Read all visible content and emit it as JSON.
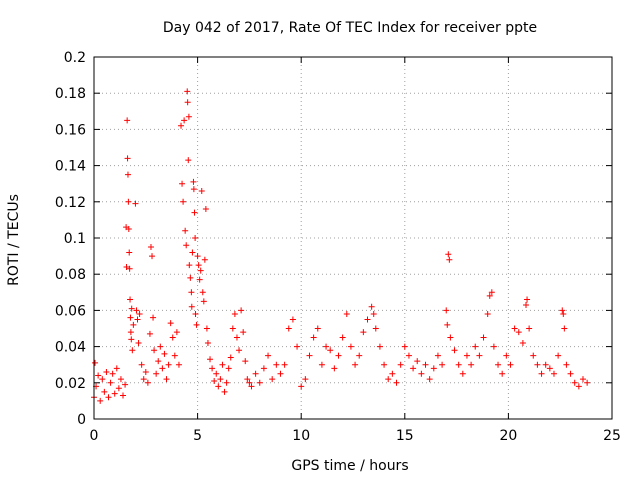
{
  "chart_data": {
    "type": "scatter",
    "title": "Day 042 of 2017, Rate Of TEC Index for receiver ppte",
    "xlabel": "GPS time / hours",
    "ylabel": "ROTI / TECUs",
    "xlim": [
      0,
      25
    ],
    "ylim": [
      0,
      0.2
    ],
    "xticks": [
      0,
      5,
      10,
      15,
      20,
      25
    ],
    "yticks": [
      0,
      0.02,
      0.04,
      0.06,
      0.08,
      0.1,
      0.12,
      0.14,
      0.16,
      0.18,
      0.2
    ],
    "grid": true,
    "marker": "+",
    "color": "#ff0000",
    "series": [
      {
        "points": [
          [
            0.0,
            0.012
          ],
          [
            0.05,
            0.031
          ],
          [
            0.1,
            0.018
          ],
          [
            0.2,
            0.024
          ],
          [
            0.3,
            0.01
          ],
          [
            0.4,
            0.022
          ],
          [
            0.5,
            0.015
          ],
          [
            0.6,
            0.026
          ],
          [
            0.7,
            0.012
          ],
          [
            0.8,
            0.02
          ],
          [
            0.9,
            0.025
          ],
          [
            1.0,
            0.014
          ],
          [
            1.1,
            0.028
          ],
          [
            1.2,
            0.017
          ],
          [
            1.3,
            0.022
          ],
          [
            1.4,
            0.013
          ],
          [
            1.5,
            0.019
          ],
          [
            1.55,
            0.106
          ],
          [
            1.57,
            0.084
          ],
          [
            1.6,
            0.165
          ],
          [
            1.62,
            0.144
          ],
          [
            1.64,
            0.135
          ],
          [
            1.66,
            0.12
          ],
          [
            1.68,
            0.105
          ],
          [
            1.7,
            0.092
          ],
          [
            1.72,
            0.083
          ],
          [
            1.74,
            0.066
          ],
          [
            1.76,
            0.056
          ],
          [
            1.78,
            0.048
          ],
          [
            1.8,
            0.044
          ],
          [
            1.82,
            0.061
          ],
          [
            1.85,
            0.038
          ],
          [
            1.9,
            0.052
          ],
          [
            2.0,
            0.119
          ],
          [
            2.05,
            0.06
          ],
          [
            2.1,
            0.055
          ],
          [
            2.15,
            0.042
          ],
          [
            2.2,
            0.058
          ],
          [
            2.3,
            0.03
          ],
          [
            2.4,
            0.022
          ],
          [
            2.5,
            0.026
          ],
          [
            2.6,
            0.02
          ],
          [
            2.7,
            0.047
          ],
          [
            2.75,
            0.095
          ],
          [
            2.8,
            0.09
          ],
          [
            2.85,
            0.056
          ],
          [
            2.9,
            0.038
          ],
          [
            3.0,
            0.025
          ],
          [
            3.1,
            0.032
          ],
          [
            3.2,
            0.04
          ],
          [
            3.3,
            0.028
          ],
          [
            3.4,
            0.036
          ],
          [
            3.5,
            0.022
          ],
          [
            3.6,
            0.03
          ],
          [
            3.7,
            0.053
          ],
          [
            3.8,
            0.045
          ],
          [
            3.9,
            0.035
          ],
          [
            4.0,
            0.048
          ],
          [
            4.1,
            0.03
          ],
          [
            4.2,
            0.162
          ],
          [
            4.25,
            0.13
          ],
          [
            4.3,
            0.12
          ],
          [
            4.35,
            0.165
          ],
          [
            4.4,
            0.104
          ],
          [
            4.45,
            0.096
          ],
          [
            4.5,
            0.181
          ],
          [
            4.52,
            0.175
          ],
          [
            4.55,
            0.143
          ],
          [
            4.58,
            0.167
          ],
          [
            4.6,
            0.085
          ],
          [
            4.65,
            0.078
          ],
          [
            4.7,
            0.07
          ],
          [
            4.72,
            0.062
          ],
          [
            4.75,
            0.092
          ],
          [
            4.8,
            0.131
          ],
          [
            4.82,
            0.127
          ],
          [
            4.85,
            0.114
          ],
          [
            4.88,
            0.1
          ],
          [
            4.9,
            0.058
          ],
          [
            4.95,
            0.052
          ],
          [
            5.0,
            0.09
          ],
          [
            5.05,
            0.085
          ],
          [
            5.1,
            0.077
          ],
          [
            5.15,
            0.082
          ],
          [
            5.2,
            0.126
          ],
          [
            5.25,
            0.07
          ],
          [
            5.3,
            0.065
          ],
          [
            5.35,
            0.088
          ],
          [
            5.4,
            0.116
          ],
          [
            5.45,
            0.05
          ],
          [
            5.5,
            0.042
          ],
          [
            5.6,
            0.033
          ],
          [
            5.7,
            0.028
          ],
          [
            5.8,
            0.021
          ],
          [
            5.9,
            0.025
          ],
          [
            6.0,
            0.018
          ],
          [
            6.1,
            0.022
          ],
          [
            6.2,
            0.03
          ],
          [
            6.3,
            0.015
          ],
          [
            6.4,
            0.02
          ],
          [
            6.5,
            0.028
          ],
          [
            6.6,
            0.034
          ],
          [
            6.7,
            0.05
          ],
          [
            6.8,
            0.058
          ],
          [
            6.9,
            0.045
          ],
          [
            7.0,
            0.038
          ],
          [
            7.1,
            0.06
          ],
          [
            7.2,
            0.048
          ],
          [
            7.3,
            0.032
          ],
          [
            7.4,
            0.022
          ],
          [
            7.5,
            0.02
          ],
          [
            7.6,
            0.018
          ],
          [
            7.8,
            0.025
          ],
          [
            8.0,
            0.02
          ],
          [
            8.2,
            0.028
          ],
          [
            8.4,
            0.035
          ],
          [
            8.6,
            0.022
          ],
          [
            8.8,
            0.03
          ],
          [
            9.0,
            0.025
          ],
          [
            9.2,
            0.03
          ],
          [
            9.4,
            0.05
          ],
          [
            9.6,
            0.055
          ],
          [
            9.8,
            0.04
          ],
          [
            10.0,
            0.018
          ],
          [
            10.2,
            0.022
          ],
          [
            10.4,
            0.035
          ],
          [
            10.6,
            0.045
          ],
          [
            10.8,
            0.05
          ],
          [
            11.0,
            0.03
          ],
          [
            11.2,
            0.04
          ],
          [
            11.4,
            0.038
          ],
          [
            11.6,
            0.028
          ],
          [
            11.8,
            0.035
          ],
          [
            12.0,
            0.045
          ],
          [
            12.2,
            0.058
          ],
          [
            12.4,
            0.04
          ],
          [
            12.6,
            0.03
          ],
          [
            12.8,
            0.035
          ],
          [
            13.0,
            0.048
          ],
          [
            13.2,
            0.055
          ],
          [
            13.4,
            0.062
          ],
          [
            13.5,
            0.058
          ],
          [
            13.6,
            0.05
          ],
          [
            13.8,
            0.04
          ],
          [
            14.0,
            0.03
          ],
          [
            14.2,
            0.022
          ],
          [
            14.4,
            0.025
          ],
          [
            14.6,
            0.02
          ],
          [
            14.8,
            0.03
          ],
          [
            15.0,
            0.04
          ],
          [
            15.2,
            0.035
          ],
          [
            15.4,
            0.028
          ],
          [
            15.6,
            0.032
          ],
          [
            15.8,
            0.025
          ],
          [
            16.0,
            0.03
          ],
          [
            16.2,
            0.022
          ],
          [
            16.4,
            0.028
          ],
          [
            16.6,
            0.035
          ],
          [
            16.8,
            0.03
          ],
          [
            17.0,
            0.06
          ],
          [
            17.05,
            0.052
          ],
          [
            17.1,
            0.091
          ],
          [
            17.15,
            0.088
          ],
          [
            17.2,
            0.045
          ],
          [
            17.4,
            0.038
          ],
          [
            17.6,
            0.03
          ],
          [
            17.8,
            0.025
          ],
          [
            18.0,
            0.035
          ],
          [
            18.2,
            0.03
          ],
          [
            18.4,
            0.04
          ],
          [
            18.6,
            0.035
          ],
          [
            18.8,
            0.045
          ],
          [
            19.0,
            0.058
          ],
          [
            19.1,
            0.068
          ],
          [
            19.2,
            0.07
          ],
          [
            19.3,
            0.04
          ],
          [
            19.5,
            0.03
          ],
          [
            19.7,
            0.025
          ],
          [
            19.9,
            0.035
          ],
          [
            20.1,
            0.03
          ],
          [
            20.3,
            0.05
          ],
          [
            20.5,
            0.048
          ],
          [
            20.7,
            0.042
          ],
          [
            20.85,
            0.063
          ],
          [
            20.9,
            0.066
          ],
          [
            21.0,
            0.05
          ],
          [
            21.2,
            0.035
          ],
          [
            21.4,
            0.03
          ],
          [
            21.6,
            0.025
          ],
          [
            21.8,
            0.03
          ],
          [
            22.0,
            0.028
          ],
          [
            22.2,
            0.025
          ],
          [
            22.4,
            0.035
          ],
          [
            22.6,
            0.06
          ],
          [
            22.65,
            0.058
          ],
          [
            22.7,
            0.05
          ],
          [
            22.8,
            0.03
          ],
          [
            23.0,
            0.025
          ],
          [
            23.2,
            0.02
          ],
          [
            23.4,
            0.018
          ],
          [
            23.6,
            0.022
          ],
          [
            23.8,
            0.02
          ]
        ]
      }
    ]
  }
}
